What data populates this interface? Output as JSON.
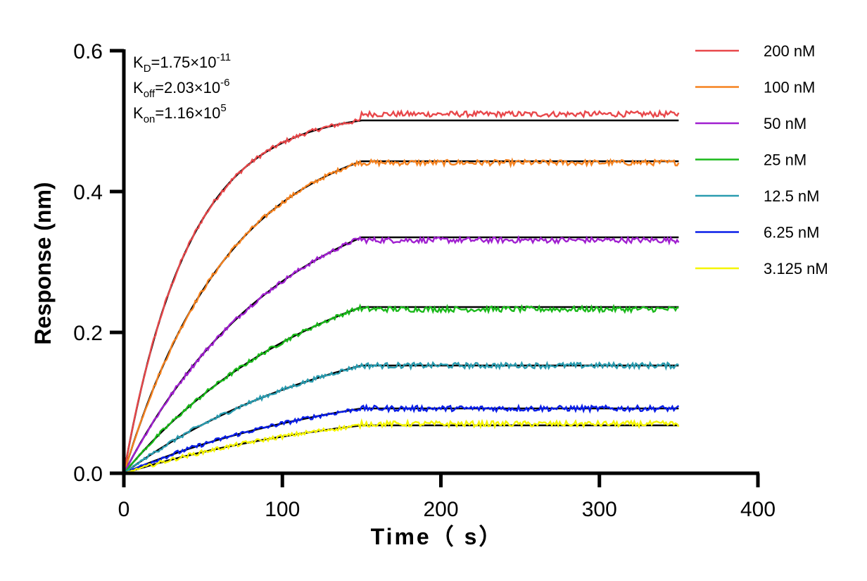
{
  "chart_data": {
    "type": "line",
    "xlabel": "Time（ s）",
    "ylabel": "Response (nm)",
    "xlim": [
      0,
      400
    ],
    "ylim": [
      0,
      0.6
    ],
    "x_ticks": [
      "0",
      "100",
      "200",
      "300",
      "400"
    ],
    "y_ticks": [
      "0.0",
      "0.2",
      "0.4",
      "0.6"
    ],
    "grid": false,
    "legend_position": "top-right",
    "association_end_s": 150,
    "end_s": 350,
    "annotations": [
      {
        "base": "K",
        "sub": "D",
        "text": "=1.75×10",
        "sup": "-11"
      },
      {
        "base": "K",
        "sub": "off",
        "text": "=2.03×10",
        "sup": "-6"
      },
      {
        "base": "K",
        "sub": "on",
        "text": "=1.16×10",
        "sup": "5"
      }
    ],
    "fit_color": "#000000",
    "series": [
      {
        "name": "200 nM",
        "color": "#e8474a",
        "plateau": 0.501,
        "kobs": 0.0243,
        "measured_offset": 0.009
      },
      {
        "name": "100 nM",
        "color": "#f5821f",
        "plateau": 0.443,
        "kobs": 0.0149,
        "measured_offset": -0.002
      },
      {
        "name": "50 nM",
        "color": "#a020d0",
        "plateau": 0.335,
        "kobs": 0.01,
        "measured_offset": -0.004
      },
      {
        "name": "25 nM",
        "color": "#1ab91a",
        "plateau": 0.236,
        "kobs": 0.008,
        "measured_offset": -0.003
      },
      {
        "name": "12.5 nM",
        "color": "#2a9cb0",
        "plateau": 0.153,
        "kobs": 0.007,
        "measured_offset": 0.0
      },
      {
        "name": "6.25 nM",
        "color": "#0a1ee8",
        "plateau": 0.092,
        "kobs": 0.0066,
        "measured_offset": 0.0
      },
      {
        "name": "3.125 nM",
        "color": "#f5f500",
        "plateau": 0.068,
        "kobs": 0.0064,
        "measured_offset": 0.002
      }
    ]
  }
}
